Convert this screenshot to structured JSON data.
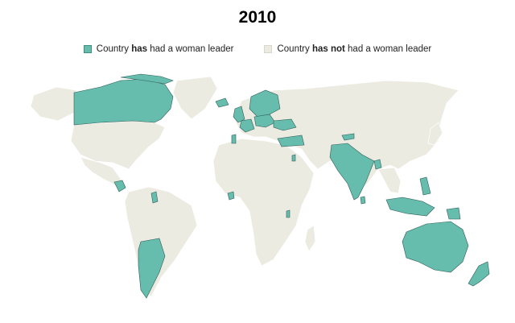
{
  "title": "2010",
  "legend": {
    "has": {
      "prefix": "Country ",
      "bold": "has",
      "suffix": " had a woman leader",
      "color": "#66bcad"
    },
    "hasnot": {
      "prefix": "Country ",
      "bold": "has not",
      "suffix": " had a woman leader",
      "color": "#ecebe2"
    }
  },
  "map": {
    "countries_with_woman_leader": [
      "Canada",
      "Nicaragua",
      "Guyana",
      "Argentina",
      "Chile",
      "Iceland",
      "Ireland",
      "United Kingdom",
      "Portugal",
      "France",
      "Norway",
      "Sweden",
      "Finland",
      "Poland",
      "Germany",
      "Lithuania",
      "Latvia",
      "Ukraine",
      "Croatia",
      "Switzerland",
      "Turkey",
      "Israel",
      "Kyrgyzstan",
      "India",
      "Pakistan",
      "Bangladesh",
      "Sri Lanka",
      "Indonesia",
      "Philippines",
      "Papua New Guinea",
      "Australia",
      "New Zealand",
      "Liberia",
      "Rwanda"
    ]
  }
}
